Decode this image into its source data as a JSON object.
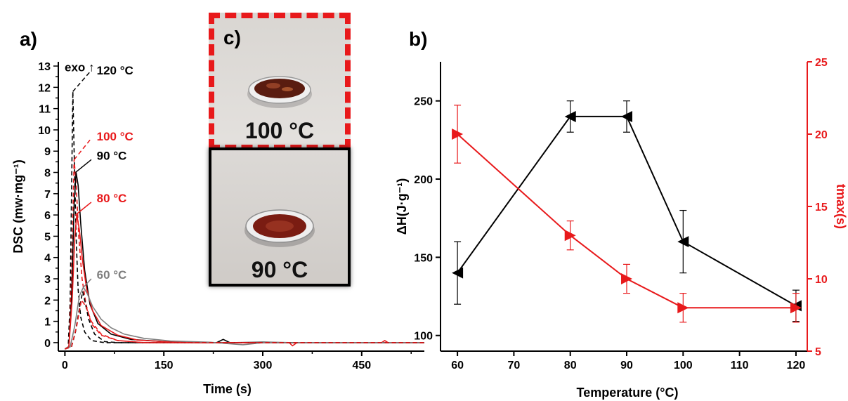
{
  "panels": {
    "a": "a)",
    "b": "b)",
    "c": "c)"
  },
  "photos": {
    "top_label": "100 °C",
    "bottom_label": "90 °C"
  },
  "colors": {
    "black": "#000000",
    "red": "#e8191b",
    "gray": "#7f7f7f"
  },
  "chart_data": [
    {
      "type": "line",
      "panel": "a)",
      "xlabel": "Time (s)",
      "ylabel": "DSC (mw·mg⁻¹)",
      "xlim": [
        -10,
        545
      ],
      "ylim": [
        -0.4,
        13.2
      ],
      "xticks": [
        0,
        150,
        300,
        450
      ],
      "yticks": [
        0,
        0.5,
        1,
        1.5,
        2,
        2.5,
        3,
        3.5,
        4,
        4.5,
        5,
        5.5,
        6,
        6.5,
        7,
        7.5,
        8,
        8.5,
        9,
        9.5,
        10,
        10.5,
        11,
        11.5,
        12,
        12.5,
        13
      ],
      "ytick_labels_at": [
        0,
        1,
        2,
        3,
        4,
        5,
        6,
        7,
        8,
        9,
        10,
        11,
        12,
        13
      ],
      "annotation_exo": "exo ↑",
      "series": [
        {
          "name": "120 °C",
          "color": "#000000",
          "dash": true,
          "leader": [
            12,
            11.8,
            40,
            12.8
          ],
          "label_at": [
            45,
            12.8
          ],
          "points": [
            [
              0,
              -0.3
            ],
            [
              5,
              -0.2
            ],
            [
              8,
              2
            ],
            [
              10,
              7
            ],
            [
              12,
              11.8
            ],
            [
              14,
              9
            ],
            [
              17,
              5
            ],
            [
              20,
              2.5
            ],
            [
              24,
              1.2
            ],
            [
              30,
              0.5
            ],
            [
              40,
              0.1
            ],
            [
              60,
              0
            ],
            [
              545,
              0
            ]
          ]
        },
        {
          "name": "100 °C",
          "color": "#e8191b",
          "dash": true,
          "leader": [
            14,
            8.6,
            40,
            9.6
          ],
          "label_at": [
            45,
            9.7
          ],
          "points": [
            [
              0,
              -0.3
            ],
            [
              6,
              -0.2
            ],
            [
              10,
              3
            ],
            [
              14,
              8.6
            ],
            [
              17,
              7.5
            ],
            [
              21,
              5
            ],
            [
              26,
              3
            ],
            [
              32,
              1.8
            ],
            [
              40,
              0.9
            ],
            [
              55,
              0.35
            ],
            [
              80,
              0.1
            ],
            [
              120,
              0
            ],
            [
              545,
              0
            ]
          ]
        },
        {
          "name": "90 °C",
          "color": "#000000",
          "dash": false,
          "leader": [
            16,
            8.0,
            40,
            8.6
          ],
          "label_at": [
            45,
            8.8
          ],
          "points": [
            [
              0,
              -0.3
            ],
            [
              6,
              -0.2
            ],
            [
              10,
              2
            ],
            [
              14,
              6.5
            ],
            [
              17,
              8.0
            ],
            [
              20,
              7.4
            ],
            [
              24,
              5.6
            ],
            [
              30,
              3.4
            ],
            [
              38,
              1.8
            ],
            [
              50,
              0.9
            ],
            [
              70,
              0.4
            ],
            [
              100,
              0.15
            ],
            [
              150,
              0.05
            ],
            [
              200,
              0.02
            ],
            [
              230,
              0
            ],
            [
              240,
              0.15
            ],
            [
              250,
              0
            ],
            [
              300,
              0.02
            ],
            [
              350,
              0
            ],
            [
              545,
              0
            ]
          ]
        },
        {
          "name": "80 °C",
          "color": "#e8191b",
          "dash": false,
          "leader": [
            16,
            6.0,
            40,
            6.6
          ],
          "label_at": [
            45,
            6.8
          ],
          "points": [
            [
              0,
              -0.3
            ],
            [
              6,
              -0.2
            ],
            [
              11,
              2
            ],
            [
              15,
              5
            ],
            [
              18,
              6.0
            ],
            [
              22,
              5.3
            ],
            [
              27,
              3.8
            ],
            [
              33,
              2.5
            ],
            [
              42,
              1.5
            ],
            [
              55,
              0.8
            ],
            [
              80,
              0.35
            ],
            [
              110,
              0.12
            ],
            [
              160,
              0.03
            ],
            [
              200,
              0
            ],
            [
              340,
              0
            ],
            [
              345,
              -0.15
            ],
            [
              352,
              0
            ],
            [
              480,
              0
            ],
            [
              485,
              0.1
            ],
            [
              490,
              0
            ],
            [
              545,
              0
            ]
          ]
        },
        {
          "name": "60 °C",
          "color": "#7f7f7f",
          "dash": false,
          "leader": [
            28,
            2.6,
            40,
            3.0
          ],
          "label_at": [
            45,
            3.2
          ],
          "points": [
            [
              0,
              -0.3
            ],
            [
              8,
              -0.2
            ],
            [
              15,
              0.8
            ],
            [
              22,
              2.2
            ],
            [
              28,
              2.6
            ],
            [
              34,
              2.3
            ],
            [
              42,
              1.7
            ],
            [
              55,
              1.1
            ],
            [
              70,
              0.7
            ],
            [
              90,
              0.4
            ],
            [
              120,
              0.2
            ],
            [
              160,
              0.08
            ],
            [
              220,
              0.02
            ],
            [
              270,
              -0.1
            ],
            [
              300,
              0
            ],
            [
              545,
              0
            ]
          ]
        },
        {
          "name": "",
          "color": "#000000",
          "dash": true,
          "points": [
            [
              0,
              -0.3
            ],
            [
              10,
              -0.2
            ],
            [
              16,
              0.5
            ],
            [
              22,
              1.6
            ],
            [
              27,
              2.4
            ],
            [
              30,
              2.0
            ],
            [
              36,
              1.1
            ],
            [
              45,
              0.4
            ],
            [
              60,
              0.05
            ],
            [
              80,
              0
            ],
            [
              545,
              0
            ]
          ]
        },
        {
          "name": "",
          "color": "#e8191b",
          "dash": true,
          "points": [
            [
              0,
              -0.3
            ],
            [
              10,
              -0.2
            ],
            [
              18,
              0.8
            ],
            [
              25,
              2.0
            ],
            [
              32,
              1.7
            ],
            [
              40,
              1.0
            ],
            [
              55,
              0.4
            ],
            [
              80,
              0.1
            ],
            [
              120,
              0
            ],
            [
              545,
              0
            ]
          ]
        }
      ]
    },
    {
      "type": "line",
      "panel": "b)",
      "xlabel": "Temperature (°C)",
      "ylabel": "ΔH(J·g⁻¹)",
      "y2label": "tmax(s)",
      "xlim": [
        57,
        122
      ],
      "ylim": [
        90,
        275
      ],
      "y2lim": [
        5,
        25
      ],
      "xticks": [
        60,
        70,
        80,
        90,
        100,
        110,
        120
      ],
      "yticks": [
        100,
        150,
        200,
        250
      ],
      "y2ticks": [
        5,
        10,
        15,
        20,
        25
      ],
      "series": [
        {
          "name": "",
          "axis": "left",
          "color": "#000000",
          "marker": "triangle-left",
          "x": [
            60,
            80,
            90,
            100,
            120
          ],
          "y": [
            140,
            240,
            240,
            160,
            119
          ],
          "err": [
            20,
            10,
            10,
            20,
            10
          ]
        },
        {
          "name": "",
          "axis": "right",
          "color": "#e8191b",
          "marker": "triangle-right",
          "x": [
            60,
            80,
            90,
            100,
            120
          ],
          "y": [
            20,
            13,
            10,
            8,
            8
          ],
          "err": [
            2,
            1,
            1,
            1,
            1
          ]
        }
      ]
    }
  ]
}
